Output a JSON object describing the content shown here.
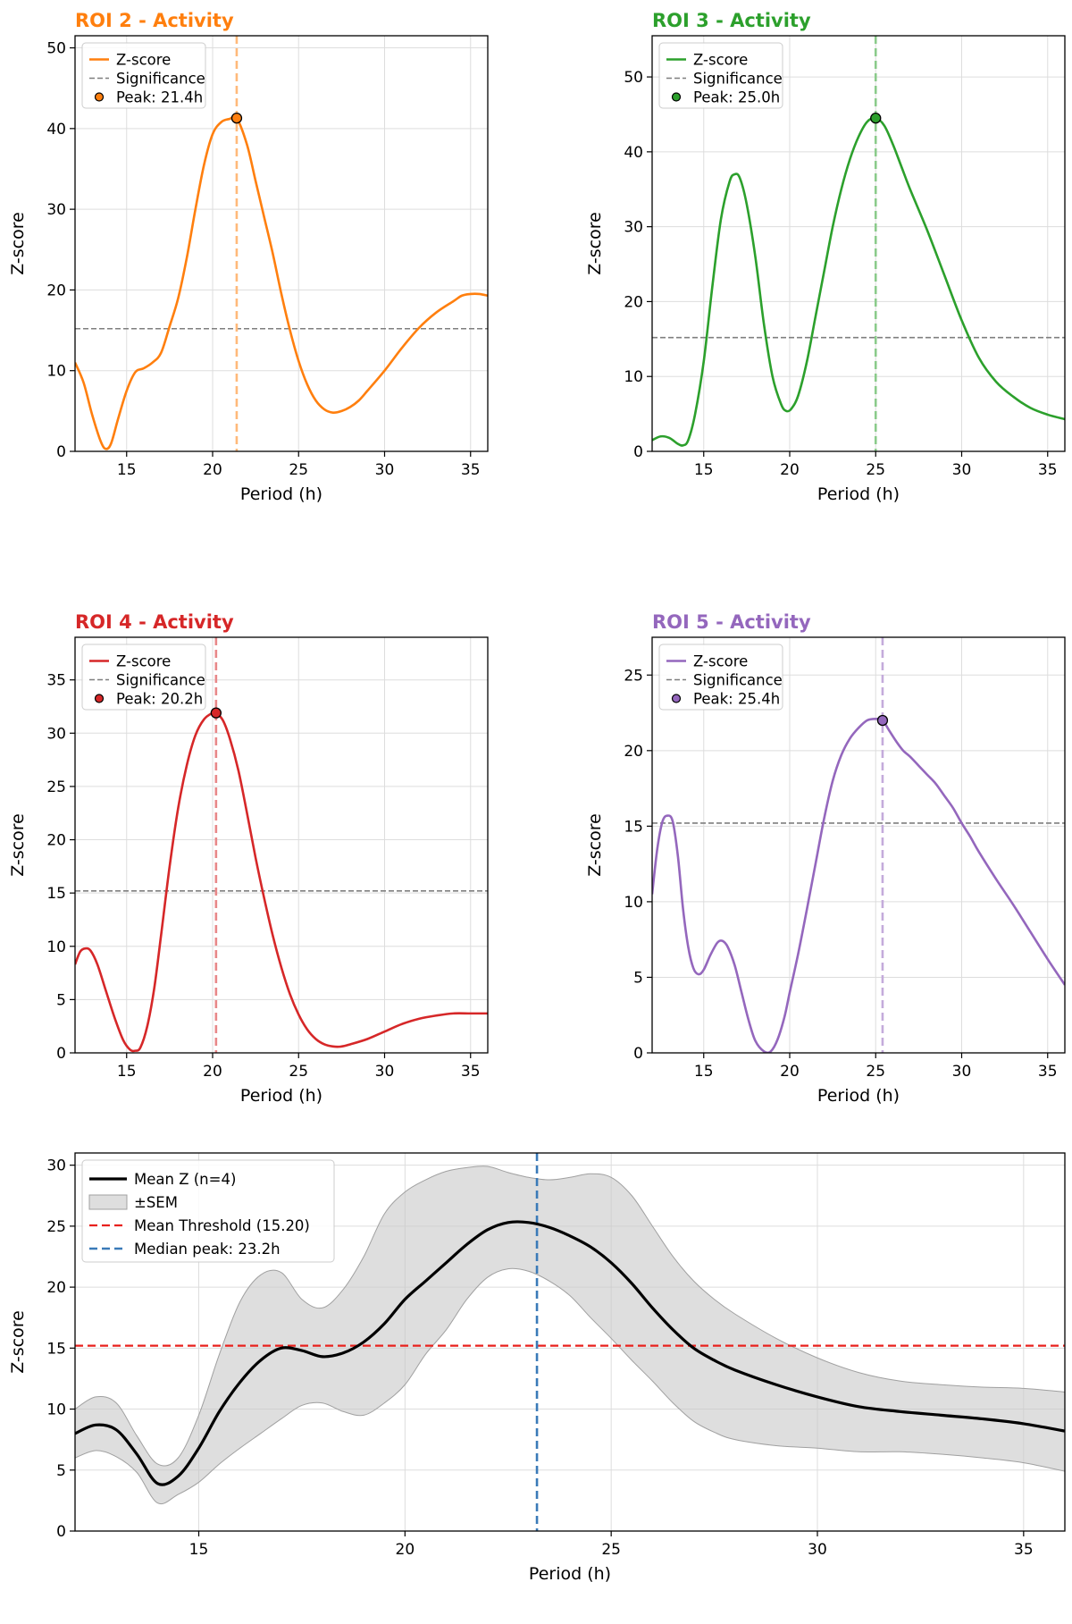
{
  "chart_data": [
    {
      "type": "line",
      "title": "ROI 2 - Activity",
      "color": "#ff7f0e",
      "xlabel": "Period (h)",
      "ylabel": "Z-score",
      "xlim": [
        12,
        36
      ],
      "ylim": [
        0,
        51.5
      ],
      "xticks": [
        15,
        20,
        25,
        30,
        35
      ],
      "yticks": [
        0,
        10,
        20,
        30,
        40,
        50
      ],
      "threshold": 15.2,
      "peak": {
        "x": 21.4,
        "y": 41.3
      },
      "legend": [
        "Z-score",
        "Significance",
        "Peak: 21.4h"
      ],
      "legend_position": "upper left",
      "grid": true,
      "series": [
        {
          "name": "Z-score",
          "x": [
            12,
            12.5,
            13,
            13.5,
            13.8,
            14.1,
            14.5,
            15,
            15.5,
            16,
            16.5,
            17,
            17.5,
            18,
            18.5,
            19,
            19.5,
            20,
            20.5,
            21,
            21.4,
            22,
            22.5,
            23,
            23.5,
            24,
            24.5,
            25,
            25.5,
            26,
            26.5,
            27,
            27.5,
            28,
            28.5,
            29,
            30,
            31,
            32,
            33,
            34,
            34.5,
            35,
            35.5,
            36
          ],
          "y": [
            11,
            8.5,
            4.5,
            1.2,
            0.3,
            1,
            4,
            7.5,
            9.8,
            10.3,
            11,
            12.2,
            15.5,
            19,
            24,
            30,
            35.5,
            39.3,
            40.8,
            41.2,
            41.3,
            38,
            33.5,
            29,
            24.5,
            19.5,
            15,
            11.2,
            8.3,
            6.3,
            5.2,
            4.8,
            5,
            5.5,
            6.3,
            7.5,
            10,
            12.8,
            15.3,
            17.2,
            18.6,
            19.3,
            19.5,
            19.5,
            19.3
          ]
        }
      ]
    },
    {
      "type": "line",
      "title": "ROI 3 - Activity",
      "color": "#2ca02c",
      "xlabel": "Period (h)",
      "ylabel": "Z-score",
      "xlim": [
        12,
        36
      ],
      "ylim": [
        0,
        55.5
      ],
      "xticks": [
        15,
        20,
        25,
        30,
        35
      ],
      "yticks": [
        0,
        10,
        20,
        30,
        40,
        50
      ],
      "threshold": 15.2,
      "peak": {
        "x": 25.0,
        "y": 44.5
      },
      "legend": [
        "Z-score",
        "Significance",
        "Peak: 25.0h"
      ],
      "legend_position": "upper left",
      "grid": true,
      "series": [
        {
          "name": "Z-score",
          "x": [
            12,
            12.5,
            13,
            13.5,
            13.8,
            14.1,
            14.5,
            15,
            15.5,
            16,
            16.5,
            16.8,
            17.1,
            17.5,
            18,
            18.5,
            19,
            19.5,
            19.8,
            20.1,
            20.5,
            21,
            21.5,
            22,
            22.5,
            23,
            23.5,
            24,
            24.5,
            25,
            25.5,
            26,
            26.5,
            27,
            28,
            29,
            30,
            31,
            32,
            33,
            34,
            35,
            36
          ],
          "y": [
            1.5,
            2,
            1.8,
            1,
            0.8,
            1.5,
            5,
            12,
            22,
            31,
            36,
            37,
            36.5,
            33,
            26,
            17,
            10,
            6.3,
            5.4,
            5.7,
            7.5,
            12,
            18,
            24,
            30,
            35,
            39,
            42,
            44,
            44.5,
            43.5,
            41,
            38,
            35,
            29.5,
            23.5,
            17.5,
            12.5,
            9.3,
            7.3,
            5.8,
            4.9,
            4.3
          ]
        }
      ]
    },
    {
      "type": "line",
      "title": "ROI 4 - Activity",
      "color": "#d62728",
      "xlabel": "Period (h)",
      "ylabel": "Z-score",
      "xlim": [
        12,
        36
      ],
      "ylim": [
        0,
        39
      ],
      "xticks": [
        15,
        20,
        25,
        30,
        35
      ],
      "yticks": [
        0,
        5,
        10,
        15,
        20,
        25,
        30,
        35
      ],
      "threshold": 15.2,
      "peak": {
        "x": 20.2,
        "y": 31.9
      },
      "legend": [
        "Z-score",
        "Significance",
        "Peak: 20.2h"
      ],
      "legend_position": "upper left",
      "grid": true,
      "series": [
        {
          "name": "Z-score",
          "x": [
            12,
            12.3,
            12.6,
            12.9,
            13.3,
            13.8,
            14.3,
            14.8,
            15.2,
            15.5,
            15.8,
            16.2,
            16.6,
            17,
            17.5,
            18,
            18.5,
            19,
            19.5,
            20,
            20.2,
            20.6,
            21,
            21.5,
            22,
            22.5,
            23,
            23.5,
            24,
            24.5,
            25,
            25.5,
            26,
            26.5,
            27,
            27.5,
            28,
            29,
            30,
            31,
            32,
            33,
            34,
            35,
            36
          ],
          "y": [
            8.3,
            9.5,
            9.8,
            9.6,
            8.3,
            5.8,
            3.3,
            1.2,
            0.3,
            0.2,
            0.5,
            2.5,
            6,
            11,
            17.5,
            23,
            27,
            29.8,
            31.3,
            31.9,
            31.9,
            31.2,
            29.5,
            26.5,
            22.5,
            18.3,
            14.5,
            11,
            8,
            5.5,
            3.6,
            2.2,
            1.3,
            0.8,
            0.6,
            0.6,
            0.8,
            1.3,
            2,
            2.7,
            3.2,
            3.5,
            3.7,
            3.7,
            3.7
          ]
        }
      ]
    },
    {
      "type": "line",
      "title": "ROI 5 - Activity",
      "color": "#9467bd",
      "xlabel": "Period (h)",
      "ylabel": "Z-score",
      "xlim": [
        12,
        36
      ],
      "ylim": [
        0,
        27.5
      ],
      "xticks": [
        15,
        20,
        25,
        30,
        35
      ],
      "yticks": [
        0,
        5,
        10,
        15,
        20,
        25
      ],
      "threshold": 15.2,
      "peak": {
        "x": 25.4,
        "y": 22.0
      },
      "legend": [
        "Z-score",
        "Significance",
        "Peak: 25.4h"
      ],
      "legend_position": "upper left",
      "grid": true,
      "series": [
        {
          "name": "Z-score",
          "x": [
            12,
            12.3,
            12.6,
            12.9,
            13.2,
            13.5,
            13.8,
            14.1,
            14.4,
            14.7,
            15,
            15.4,
            15.8,
            16.1,
            16.4,
            16.8,
            17.2,
            17.6,
            18,
            18.5,
            18.9,
            19.3,
            19.7,
            20,
            20.5,
            21,
            21.5,
            22,
            22.5,
            23,
            23.5,
            24,
            24.5,
            25,
            25.4,
            25.8,
            26.2,
            26.6,
            27,
            27.5,
            28,
            28.5,
            29,
            29.5,
            30,
            30.5,
            31,
            32,
            33,
            34,
            35,
            36
          ],
          "y": [
            10.5,
            13.5,
            15.3,
            15.7,
            15.3,
            13,
            9.5,
            7,
            5.6,
            5.2,
            5.5,
            6.5,
            7.3,
            7.4,
            7,
            5.8,
            4,
            2.2,
            0.8,
            0.1,
            0.1,
            0.9,
            2.4,
            4,
            6.6,
            9.5,
            12.5,
            15.5,
            18,
            19.7,
            20.8,
            21.5,
            22,
            22.1,
            22,
            21.3,
            20.6,
            20,
            19.6,
            19,
            18.4,
            17.8,
            17,
            16.2,
            15.2,
            14.3,
            13.3,
            11.5,
            9.8,
            8,
            6.2,
            4.5
          ]
        }
      ]
    },
    {
      "type": "area",
      "title": "",
      "xlabel": "Period (h)",
      "ylabel": "Z-score",
      "xlim": [
        12,
        36
      ],
      "ylim": [
        0,
        31
      ],
      "xticks": [
        15,
        20,
        25,
        30,
        35
      ],
      "yticks": [
        0,
        5,
        10,
        15,
        20,
        25,
        30
      ],
      "threshold": 15.2,
      "median_peak": 23.2,
      "legend": [
        "Mean Z (n=4)",
        "±SEM",
        "Mean Threshold (15.20)",
        "Median peak: 23.2h"
      ],
      "legend_position": "upper left",
      "grid": true,
      "x": [
        12,
        12.5,
        13,
        13.5,
        14,
        14.5,
        15,
        15.5,
        16,
        16.5,
        17,
        17.5,
        18,
        18.5,
        19,
        19.5,
        20,
        20.5,
        21,
        21.5,
        22,
        22.5,
        23,
        23.5,
        24,
        24.5,
        25,
        25.5,
        26,
        26.5,
        27,
        27.5,
        28,
        29,
        30,
        31,
        32,
        33,
        34,
        35,
        36
      ],
      "series": [
        {
          "name": "Mean Z (n=4)",
          "values": [
            8.0,
            8.7,
            8.3,
            6.3,
            3.9,
            4.5,
            6.8,
            9.8,
            12.2,
            14.0,
            15.0,
            14.8,
            14.3,
            14.6,
            15.5,
            17.0,
            19.0,
            20.5,
            22.0,
            23.5,
            24.7,
            25.3,
            25.3,
            24.9,
            24.2,
            23.3,
            22.0,
            20.3,
            18.3,
            16.5,
            15.0,
            14.0,
            13.2,
            12.0,
            11.0,
            10.2,
            9.8,
            9.5,
            9.2,
            8.8,
            8.2
          ]
        },
        {
          "name": "±SEM upper",
          "values": [
            10.0,
            11.0,
            10.5,
            7.8,
            5.5,
            6.0,
            9.5,
            14.5,
            18.8,
            21.0,
            21.2,
            19.0,
            18.3,
            19.8,
            22.5,
            26.0,
            27.8,
            28.8,
            29.5,
            29.8,
            29.9,
            29.4,
            29.0,
            28.8,
            29.0,
            29.3,
            29.0,
            27.5,
            25.0,
            22.5,
            20.5,
            19.0,
            17.8,
            15.8,
            14.2,
            13.0,
            12.3,
            12.0,
            11.8,
            11.7,
            11.4
          ]
        },
        {
          "name": "±SEM lower",
          "values": [
            6.0,
            6.6,
            6.1,
            4.8,
            2.3,
            3.0,
            4.0,
            5.5,
            6.8,
            8.0,
            9.2,
            10.3,
            10.5,
            9.8,
            9.5,
            10.5,
            12.0,
            14.5,
            16.5,
            19.0,
            20.8,
            21.5,
            21.3,
            20.5,
            19.3,
            17.5,
            15.8,
            14.0,
            12.3,
            10.5,
            9.0,
            8.1,
            7.5,
            7.0,
            6.8,
            6.5,
            6.5,
            6.3,
            6.0,
            5.6,
            4.9
          ]
        }
      ]
    }
  ]
}
